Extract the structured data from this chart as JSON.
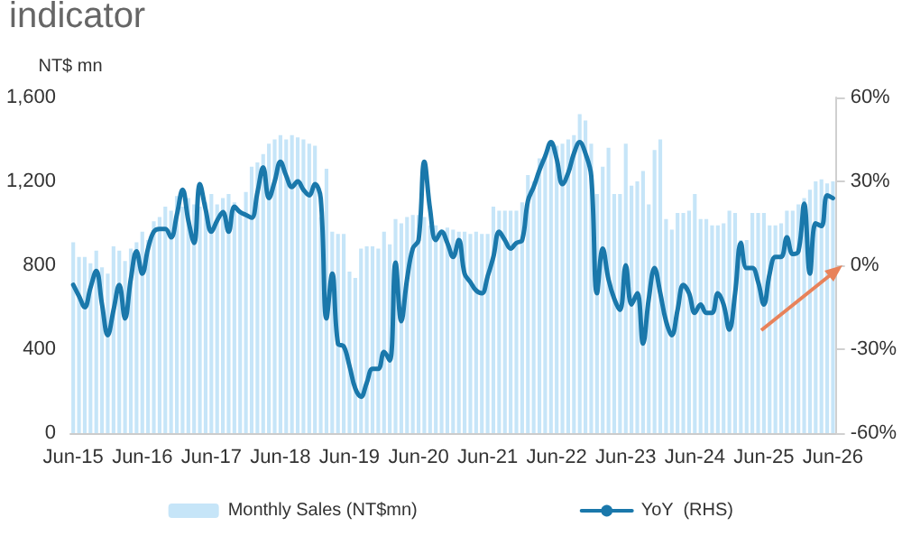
{
  "chart_data": {
    "type": "bar",
    "title": "indicator",
    "ylabel": "NT$ mn",
    "categories": [
      "Jun-15",
      null,
      null,
      null,
      null,
      null,
      null,
      null,
      null,
      null,
      null,
      null,
      "Jun-16",
      null,
      null,
      null,
      null,
      null,
      null,
      null,
      null,
      null,
      null,
      null,
      "Jun-17",
      null,
      null,
      null,
      null,
      null,
      null,
      null,
      null,
      null,
      null,
      null,
      "Jun-18",
      null,
      null,
      null,
      null,
      null,
      null,
      null,
      null,
      null,
      null,
      null,
      "Jun-19",
      null,
      null,
      null,
      null,
      null,
      null,
      null,
      null,
      null,
      null,
      null,
      "Jun-20",
      null,
      null,
      null,
      null,
      null,
      null,
      null,
      null,
      null,
      null,
      null,
      "Jun-21",
      null,
      null,
      null,
      null,
      null,
      null,
      null,
      null,
      null,
      null,
      null,
      "Jun-22",
      null,
      null,
      null,
      null,
      null,
      null,
      null,
      null,
      null,
      null,
      null,
      "Jun-23",
      null,
      null,
      null,
      null,
      null,
      null,
      null,
      null,
      null,
      null,
      null,
      "Jun-24",
      null,
      null,
      null,
      null,
      null,
      null,
      null,
      null,
      null,
      null,
      null,
      "Jun-25",
      null,
      null,
      null,
      null,
      null,
      null,
      null,
      null,
      null,
      null,
      null,
      "Jun-26"
    ],
    "series": [
      {
        "name": "Monthly Sales (NT$mn)",
        "color": "#c6e5f8",
        "values": [
          910,
          840,
          840,
          810,
          870,
          790,
          760,
          890,
          870,
          820,
          880,
          910,
          960,
          920,
          1010,
          1030,
          1080,
          1060,
          1130,
          1080,
          1120,
          1090,
          1080,
          1100,
          1140,
          1090,
          1120,
          1140,
          1100,
          1060,
          1150,
          1270,
          1290,
          1330,
          1380,
          1400,
          1420,
          1400,
          1420,
          1410,
          1400,
          1380,
          1370,
          1030,
          1260,
          960,
          950,
          950,
          770,
          740,
          880,
          890,
          890,
          880,
          960,
          900,
          1020,
          1000,
          1030,
          1040,
          1040,
          1030,
          990,
          990,
          970,
          980,
          970,
          960,
          960,
          950,
          960,
          950,
          950,
          1080,
          1060,
          1060,
          1060,
          1060,
          1100,
          1230,
          1200,
          1310,
          1330,
          1360,
          1370,
          1380,
          1400,
          1420,
          1520,
          1490,
          1380,
          1140,
          1270,
          1360,
          1140,
          1140,
          1380,
          1180,
          1200,
          1250,
          1090,
          1350,
          1400,
          1020,
          970,
          1050,
          1050,
          1060,
          1140,
          1020,
          1020,
          990,
          990,
          1000,
          1060,
          1050,
          920,
          920,
          1050,
          1050,
          1050,
          990,
          990,
          1000,
          1060,
          1060,
          1090,
          1120,
          1160,
          1200,
          1210,
          1190,
          1200
        ]
      },
      {
        "name": "YoY  (RHS)",
        "type": "line",
        "axis": "y2",
        "color": "#1a78ab",
        "values": [
          -7,
          -11,
          -15,
          -8,
          -2,
          -14,
          -25,
          -16,
          -7,
          -19,
          -5,
          5,
          -3,
          6,
          12,
          13,
          13,
          10,
          18,
          27,
          16,
          8,
          29,
          20,
          12,
          16,
          19,
          12,
          21,
          19,
          18,
          17,
          26,
          35,
          24,
          30,
          37,
          32,
          28,
          30,
          27,
          25,
          29,
          24,
          -19,
          -3,
          -28,
          -29,
          -36,
          -44,
          -47,
          -42,
          -37,
          -37,
          -31,
          -34,
          1,
          -20,
          -5,
          6,
          9,
          37,
          20,
          9,
          12,
          8,
          3,
          9,
          -3,
          -6,
          -9,
          -10,
          -4,
          3,
          12,
          9,
          6,
          8,
          9,
          23,
          28,
          34,
          39,
          44,
          38,
          29,
          33,
          40,
          44,
          40,
          32,
          -10,
          6,
          -5,
          -12,
          -16,
          0,
          -14,
          -10,
          -28,
          -12,
          -1,
          -10,
          -20,
          -25,
          -16,
          -7,
          -10,
          -17,
          -14,
          -17,
          -17,
          -10,
          -14,
          -23,
          -10,
          8,
          -1,
          -1,
          -6,
          -14,
          -3,
          3,
          3,
          10,
          4,
          5,
          22,
          -3,
          15,
          14,
          25,
          24
        ]
      }
    ],
    "ylim": [
      0,
      1600
    ],
    "yticks": [
      0,
      400,
      800,
      {
        "value": 1200,
        "label": "1,200"
      },
      {
        "value": 1600,
        "label": "1,600"
      }
    ],
    "y2lim": [
      -60,
      60
    ],
    "y2ticks": [
      {
        "value": -60,
        "label": "-60%"
      },
      {
        "value": -30,
        "label": "-30%"
      },
      {
        "value": 0,
        "label": "0%"
      },
      {
        "value": 30,
        "label": "30%"
      },
      {
        "value": 60,
        "label": "60%"
      }
    ],
    "grid": false,
    "legend": "bottom",
    "marker": "none",
    "line_style": "solid"
  }
}
